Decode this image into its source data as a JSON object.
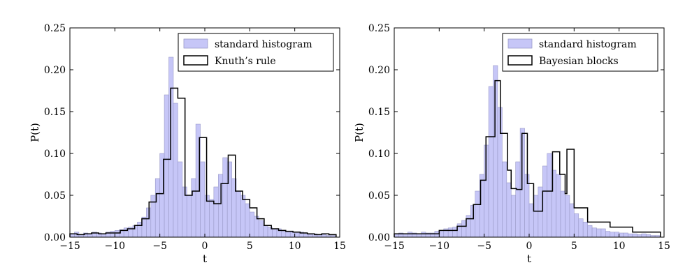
{
  "chart_data": [
    {
      "type": "histogram",
      "xlabel": "t",
      "ylabel": "P(t)",
      "xlim": [
        -15,
        15
      ],
      "ylim": [
        0,
        0.25
      ],
      "xticks": [
        -15,
        -10,
        -5,
        0,
        5,
        10,
        15
      ],
      "xtick_labels": [
        "−15",
        "−10",
        "−5",
        "0",
        "5",
        "10",
        "15"
      ],
      "yticks": [
        0,
        0.05,
        0.1,
        0.15,
        0.2,
        0.25
      ],
      "ytick_labels": [
        "0.00",
        "0.05",
        "0.10",
        "0.15",
        "0.20",
        "0.25"
      ],
      "legend": {
        "position": "top-right",
        "entries": [
          "standard histogram",
          "Knuth’s rule"
        ]
      },
      "series": [
        {
          "name": "standard histogram",
          "style": "filled-steps",
          "color": "#c6c6f7",
          "edge_color": "#9a9ac8",
          "edges": [
            -15,
            -14.5,
            -14,
            -13.5,
            -13,
            -12.5,
            -12,
            -11.5,
            -11,
            -10.5,
            -10,
            -9.5,
            -9,
            -8.5,
            -8,
            -7.5,
            -7,
            -6.5,
            -6,
            -5.5,
            -5,
            -4.5,
            -4,
            -3.5,
            -3,
            -2.5,
            -2,
            -1.5,
            -1,
            -0.5,
            0,
            0.5,
            1,
            1.5,
            2,
            2.5,
            3,
            3.5,
            4,
            4.5,
            5,
            5.5,
            6,
            6.5,
            7,
            7.5,
            8,
            8.5,
            9,
            9.5,
            10,
            10.5,
            11,
            11.5,
            12,
            12.5,
            13,
            13.5,
            14,
            14.5
          ],
          "values": [
            0.004,
            0.006,
            0.003,
            0.005,
            0.004,
            0.006,
            0.005,
            0.004,
            0.006,
            0.007,
            0.008,
            0.009,
            0.011,
            0.012,
            0.014,
            0.018,
            0.024,
            0.035,
            0.05,
            0.07,
            0.1,
            0.17,
            0.215,
            0.16,
            0.09,
            0.06,
            0.05,
            0.07,
            0.135,
            0.09,
            0.05,
            0.045,
            0.06,
            0.075,
            0.095,
            0.09,
            0.07,
            0.055,
            0.05,
            0.04,
            0.03,
            0.025,
            0.02,
            0.014,
            0.012,
            0.01,
            0.01,
            0.007,
            0.006,
            0.006,
            0.005,
            0.006,
            0.004,
            0.003,
            0.004,
            0.003,
            0.003,
            0.002,
            0.002
          ]
        },
        {
          "name": "Knuth’s rule",
          "style": "steps",
          "color": "#000000",
          "edges": [
            -15,
            -14.2,
            -13.4,
            -12.6,
            -11.8,
            -11,
            -10.2,
            -9.4,
            -8.6,
            -7.8,
            -7,
            -6.2,
            -5.4,
            -4.6,
            -3.8,
            -3,
            -2.2,
            -1.4,
            -0.6,
            0.2,
            1,
            1.8,
            2.6,
            3.4,
            4.2,
            5,
            5.8,
            6.6,
            7.4,
            8.2,
            9,
            9.8,
            10.6,
            11.4,
            12.2,
            13,
            13.8,
            14.6
          ],
          "values": [
            0.004,
            0.003,
            0.004,
            0.005,
            0.004,
            0.005,
            0.005,
            0.008,
            0.01,
            0.014,
            0.022,
            0.042,
            0.052,
            0.093,
            0.178,
            0.166,
            0.05,
            0.055,
            0.119,
            0.043,
            0.04,
            0.064,
            0.098,
            0.055,
            0.045,
            0.035,
            0.022,
            0.014,
            0.01,
            0.008,
            0.007,
            0.006,
            0.005,
            0.004,
            0.003,
            0.004,
            0.003
          ]
        }
      ]
    },
    {
      "type": "histogram",
      "xlabel": "t",
      "ylabel": "P(t)",
      "xlim": [
        -15,
        15
      ],
      "ylim": [
        0,
        0.25
      ],
      "xticks": [
        -15,
        -10,
        -5,
        0,
        5,
        10,
        15
      ],
      "xtick_labels": [
        "−15",
        "−10",
        "−5",
        "0",
        "5",
        "10",
        "15"
      ],
      "yticks": [
        0,
        0.05,
        0.1,
        0.15,
        0.2,
        0.25
      ],
      "ytick_labels": [
        "0.00",
        "0.05",
        "0.10",
        "0.15",
        "0.20",
        "0.25"
      ],
      "legend": {
        "position": "top-right",
        "entries": [
          "standard histogram",
          "Bayesian blocks"
        ]
      },
      "series": [
        {
          "name": "standard histogram",
          "style": "filled-steps",
          "color": "#c6c6f7",
          "edge_color": "#9a9ac8",
          "edges": [
            -15,
            -14.5,
            -14,
            -13.5,
            -13,
            -12.5,
            -12,
            -11.5,
            -11,
            -10.5,
            -10,
            -9.5,
            -9,
            -8.5,
            -8,
            -7.5,
            -7,
            -6.5,
            -6,
            -5.5,
            -5,
            -4.5,
            -4,
            -3.5,
            -3,
            -2.5,
            -2,
            -1.5,
            -1,
            -0.5,
            0,
            0.5,
            1,
            1.5,
            2,
            2.5,
            3,
            3.5,
            4,
            4.5,
            5,
            5.5,
            6,
            6.5,
            7,
            7.5,
            8,
            8.5,
            9,
            9.5,
            10,
            10.5,
            11,
            11.5,
            12,
            12.5,
            13,
            13.5,
            14,
            14.5
          ],
          "values": [
            0.004,
            0.005,
            0.004,
            0.006,
            0.005,
            0.004,
            0.006,
            0.005,
            0.005,
            0.007,
            0.008,
            0.01,
            0.011,
            0.012,
            0.016,
            0.02,
            0.026,
            0.038,
            0.055,
            0.075,
            0.11,
            0.18,
            0.205,
            0.155,
            0.09,
            0.065,
            0.05,
            0.09,
            0.13,
            0.075,
            0.04,
            0.05,
            0.06,
            0.085,
            0.1,
            0.08,
            0.075,
            0.055,
            0.05,
            0.04,
            0.028,
            0.022,
            0.018,
            0.014,
            0.011,
            0.01,
            0.01,
            0.007,
            0.006,
            0.006,
            0.005,
            0.005,
            0.004,
            0.004,
            0.003,
            0.004,
            0.003,
            0.002,
            0.002
          ]
        },
        {
          "name": "Bayesian blocks",
          "style": "steps",
          "color": "#000000",
          "edges": [
            -15,
            -10,
            -8,
            -7,
            -6.2,
            -5.4,
            -4.8,
            -3.8,
            -3.2,
            -2.4,
            -2,
            -1.4,
            -0.8,
            -0.2,
            0.5,
            1.5,
            2.6,
            3.4,
            4,
            4.2,
            5,
            6.5,
            9,
            11.5,
            14.6
          ],
          "values": [
            0.004,
            0.008,
            0.013,
            0.022,
            0.039,
            0.068,
            0.12,
            0.187,
            0.124,
            0.08,
            0.058,
            0.057,
            0.124,
            0.064,
            0.031,
            0.055,
            0.102,
            0.075,
            0.052,
            0.105,
            0.035,
            0.018,
            0.012,
            0.006
          ]
        }
      ]
    }
  ]
}
